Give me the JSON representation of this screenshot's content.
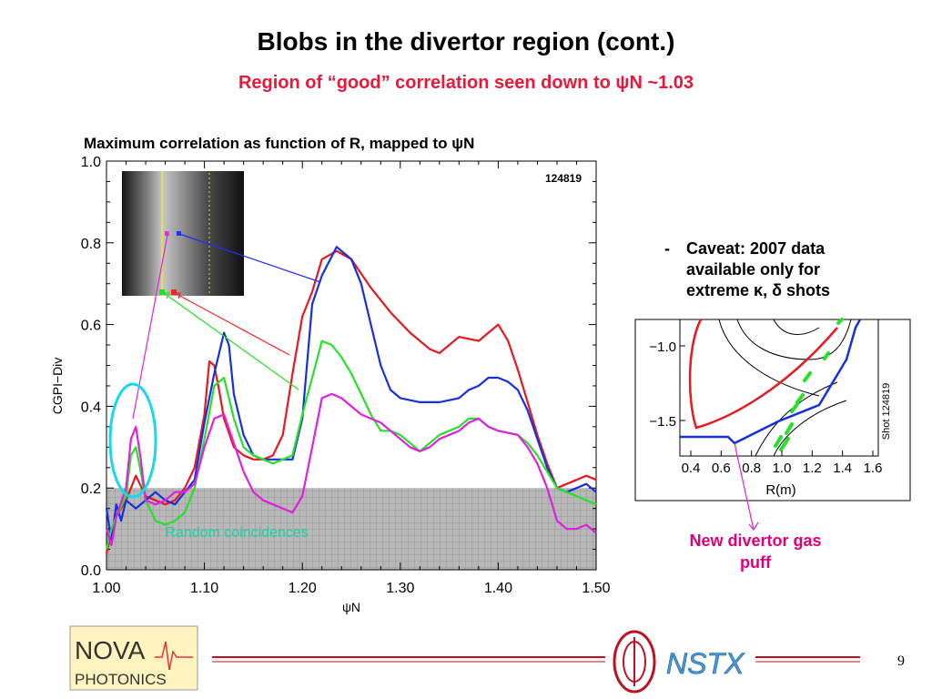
{
  "slide": {
    "title": "Blobs in the divertor region (cont.)",
    "subtitle": "Region of “good” correlation seen down to ψN ~1.03",
    "page_number": "9",
    "caveat_bullet": "-",
    "caveat_text": "Caveat: 2007 data available only for extreme κ, δ shots",
    "callout_text": "New divertor gas puff",
    "logo_left_line1": "NOVA",
    "logo_left_line2": "PHOTONICS",
    "logo_right_text": "NSTX"
  },
  "chart_data": [
    {
      "type": "line",
      "title": "Maximum correlation as function of R, mapped to ψN",
      "xlabel": "ψN",
      "ylabel": "CGPI−Div",
      "xlim": [
        1.0,
        1.5
      ],
      "ylim": [
        0.0,
        1.0
      ],
      "x_ticks": [
        "1.00",
        "1.10",
        "1.20",
        "1.30",
        "1.40",
        "1.50"
      ],
      "y_ticks": [
        "0.0",
        "0.2",
        "0.4",
        "0.6",
        "0.8",
        "1.0"
      ],
      "shot_label": "124819",
      "band_label": "Random coincidences",
      "band_range": [
        0.0,
        0.2
      ],
      "grid": false,
      "series": [
        {
          "color": "#e8181e",
          "points": [
            [
              1.0,
              0.04
            ],
            [
              1.005,
              0.09
            ],
            [
              1.01,
              0.13
            ],
            [
              1.02,
              0.17
            ],
            [
              1.03,
              0.23
            ],
            [
              1.04,
              0.18
            ],
            [
              1.05,
              0.17
            ],
            [
              1.06,
              0.16
            ],
            [
              1.07,
              0.17
            ],
            [
              1.08,
              0.2
            ],
            [
              1.09,
              0.25
            ],
            [
              1.1,
              0.38
            ],
            [
              1.105,
              0.51
            ],
            [
              1.11,
              0.5
            ],
            [
              1.115,
              0.44
            ],
            [
              1.12,
              0.37
            ],
            [
              1.13,
              0.3
            ],
            [
              1.14,
              0.28
            ],
            [
              1.15,
              0.27
            ],
            [
              1.16,
              0.27
            ],
            [
              1.17,
              0.28
            ],
            [
              1.18,
              0.33
            ],
            [
              1.19,
              0.48
            ],
            [
              1.2,
              0.62
            ],
            [
              1.21,
              0.68
            ],
            [
              1.22,
              0.76
            ],
            [
              1.235,
              0.78
            ],
            [
              1.25,
              0.76
            ],
            [
              1.27,
              0.69
            ],
            [
              1.29,
              0.63
            ],
            [
              1.31,
              0.58
            ],
            [
              1.33,
              0.54
            ],
            [
              1.34,
              0.53
            ],
            [
              1.35,
              0.55
            ],
            [
              1.36,
              0.57
            ],
            [
              1.38,
              0.56
            ],
            [
              1.39,
              0.58
            ],
            [
              1.4,
              0.6
            ],
            [
              1.41,
              0.56
            ],
            [
              1.42,
              0.49
            ],
            [
              1.43,
              0.41
            ],
            [
              1.44,
              0.33
            ],
            [
              1.45,
              0.26
            ],
            [
              1.46,
              0.2
            ],
            [
              1.47,
              0.21
            ],
            [
              1.48,
              0.22
            ],
            [
              1.49,
              0.23
            ],
            [
              1.5,
              0.22
            ]
          ]
        },
        {
          "color": "#1530e0",
          "points": [
            [
              1.0,
              0.15
            ],
            [
              1.005,
              0.07
            ],
            [
              1.01,
              0.16
            ],
            [
              1.015,
              0.12
            ],
            [
              1.02,
              0.17
            ],
            [
              1.03,
              0.15
            ],
            [
              1.04,
              0.17
            ],
            [
              1.05,
              0.19
            ],
            [
              1.06,
              0.17
            ],
            [
              1.07,
              0.16
            ],
            [
              1.08,
              0.19
            ],
            [
              1.09,
              0.22
            ],
            [
              1.1,
              0.36
            ],
            [
              1.11,
              0.48
            ],
            [
              1.12,
              0.58
            ],
            [
              1.125,
              0.55
            ],
            [
              1.13,
              0.43
            ],
            [
              1.14,
              0.33
            ],
            [
              1.15,
              0.28
            ],
            [
              1.16,
              0.27
            ],
            [
              1.17,
              0.27
            ],
            [
              1.18,
              0.27
            ],
            [
              1.19,
              0.27
            ],
            [
              1.2,
              0.37
            ],
            [
              1.21,
              0.65
            ],
            [
              1.22,
              0.72
            ],
            [
              1.235,
              0.79
            ],
            [
              1.25,
              0.76
            ],
            [
              1.26,
              0.7
            ],
            [
              1.27,
              0.6
            ],
            [
              1.28,
              0.5
            ],
            [
              1.29,
              0.44
            ],
            [
              1.3,
              0.42
            ],
            [
              1.32,
              0.41
            ],
            [
              1.34,
              0.41
            ],
            [
              1.36,
              0.42
            ],
            [
              1.37,
              0.44
            ],
            [
              1.38,
              0.45
            ],
            [
              1.39,
              0.47
            ],
            [
              1.4,
              0.47
            ],
            [
              1.41,
              0.46
            ],
            [
              1.42,
              0.44
            ],
            [
              1.43,
              0.39
            ],
            [
              1.44,
              0.32
            ],
            [
              1.45,
              0.25
            ],
            [
              1.46,
              0.2
            ],
            [
              1.47,
              0.19
            ],
            [
              1.48,
              0.2
            ],
            [
              1.49,
              0.21
            ],
            [
              1.5,
              0.19
            ]
          ]
        },
        {
          "color": "#28e028",
          "points": [
            [
              1.0,
              0.05
            ],
            [
              1.005,
              0.1
            ],
            [
              1.01,
              0.13
            ],
            [
              1.02,
              0.18
            ],
            [
              1.025,
              0.28
            ],
            [
              1.03,
              0.3
            ],
            [
              1.035,
              0.24
            ],
            [
              1.04,
              0.17
            ],
            [
              1.05,
              0.12
            ],
            [
              1.06,
              0.11
            ],
            [
              1.07,
              0.12
            ],
            [
              1.08,
              0.14
            ],
            [
              1.09,
              0.2
            ],
            [
              1.1,
              0.32
            ],
            [
              1.11,
              0.45
            ],
            [
              1.12,
              0.47
            ],
            [
              1.13,
              0.37
            ],
            [
              1.14,
              0.3
            ],
            [
              1.15,
              0.28
            ],
            [
              1.16,
              0.27
            ],
            [
              1.17,
              0.26
            ],
            [
              1.18,
              0.27
            ],
            [
              1.19,
              0.28
            ],
            [
              1.2,
              0.38
            ],
            [
              1.21,
              0.47
            ],
            [
              1.22,
              0.56
            ],
            [
              1.23,
              0.55
            ],
            [
              1.24,
              0.52
            ],
            [
              1.25,
              0.48
            ],
            [
              1.26,
              0.43
            ],
            [
              1.27,
              0.38
            ],
            [
              1.28,
              0.34
            ],
            [
              1.29,
              0.34
            ],
            [
              1.3,
              0.33
            ],
            [
              1.31,
              0.31
            ],
            [
              1.32,
              0.29
            ],
            [
              1.33,
              0.31
            ],
            [
              1.34,
              0.33
            ],
            [
              1.35,
              0.34
            ],
            [
              1.36,
              0.35
            ],
            [
              1.37,
              0.37
            ],
            [
              1.38,
              0.37
            ],
            [
              1.39,
              0.35
            ],
            [
              1.4,
              0.34
            ],
            [
              1.42,
              0.33
            ],
            [
              1.43,
              0.31
            ],
            [
              1.44,
              0.28
            ],
            [
              1.45,
              0.24
            ],
            [
              1.46,
              0.2
            ],
            [
              1.47,
              0.19
            ],
            [
              1.48,
              0.18
            ],
            [
              1.49,
              0.17
            ],
            [
              1.5,
              0.16
            ]
          ]
        },
        {
          "color": "#e020e0",
          "points": [
            [
              1.0,
              0.1
            ],
            [
              1.005,
              0.06
            ],
            [
              1.01,
              0.13
            ],
            [
              1.02,
              0.2
            ],
            [
              1.025,
              0.32
            ],
            [
              1.03,
              0.35
            ],
            [
              1.035,
              0.27
            ],
            [
              1.04,
              0.17
            ],
            [
              1.05,
              0.16
            ],
            [
              1.06,
              0.17
            ],
            [
              1.07,
              0.19
            ],
            [
              1.08,
              0.19
            ],
            [
              1.09,
              0.21
            ],
            [
              1.1,
              0.3
            ],
            [
              1.11,
              0.37
            ],
            [
              1.12,
              0.38
            ],
            [
              1.13,
              0.31
            ],
            [
              1.14,
              0.24
            ],
            [
              1.15,
              0.19
            ],
            [
              1.16,
              0.17
            ],
            [
              1.17,
              0.16
            ],
            [
              1.18,
              0.15
            ],
            [
              1.19,
              0.14
            ],
            [
              1.2,
              0.18
            ],
            [
              1.21,
              0.3
            ],
            [
              1.22,
              0.42
            ],
            [
              1.23,
              0.43
            ],
            [
              1.24,
              0.42
            ],
            [
              1.25,
              0.4
            ],
            [
              1.26,
              0.38
            ],
            [
              1.27,
              0.37
            ],
            [
              1.28,
              0.36
            ],
            [
              1.29,
              0.34
            ],
            [
              1.3,
              0.32
            ],
            [
              1.31,
              0.3
            ],
            [
              1.32,
              0.29
            ],
            [
              1.33,
              0.3
            ],
            [
              1.34,
              0.32
            ],
            [
              1.35,
              0.33
            ],
            [
              1.36,
              0.34
            ],
            [
              1.37,
              0.36
            ],
            [
              1.38,
              0.37
            ],
            [
              1.39,
              0.35
            ],
            [
              1.4,
              0.34
            ],
            [
              1.42,
              0.33
            ],
            [
              1.43,
              0.3
            ],
            [
              1.44,
              0.26
            ],
            [
              1.45,
              0.2
            ],
            [
              1.46,
              0.12
            ],
            [
              1.47,
              0.1
            ],
            [
              1.48,
              0.1
            ],
            [
              1.49,
              0.11
            ],
            [
              1.5,
              0.09
            ]
          ]
        }
      ]
    },
    {
      "type": "line",
      "title": "",
      "xlabel": "R(m)",
      "ylabel": "",
      "x_ticks": [
        "0.4",
        "0.6",
        "0.8",
        "1.0",
        "1.2",
        "1.4",
        "1.6"
      ],
      "y_ticks": [
        "−1.0",
        "−1.5"
      ],
      "shot_label": "Shot 124819",
      "grid": false
    }
  ]
}
